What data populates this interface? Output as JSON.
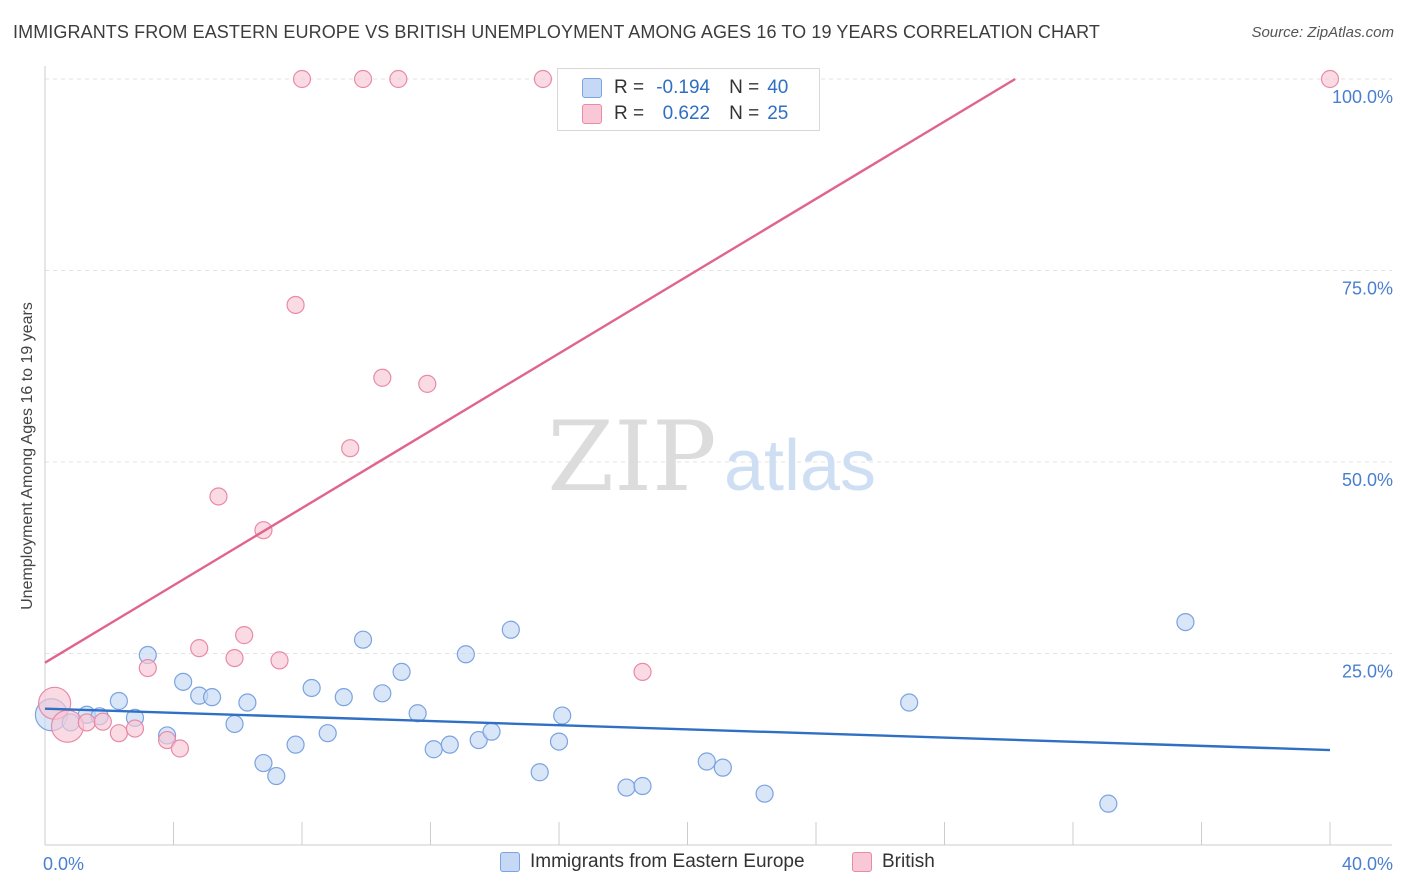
{
  "header": {
    "title": "IMMIGRANTS FROM EASTERN EUROPE VS BRITISH UNEMPLOYMENT AMONG AGES 16 TO 19 YEARS CORRELATION CHART",
    "source": "Source: ZipAtlas.com"
  },
  "watermark": {
    "zip": "ZIP",
    "atlas": "atlas"
  },
  "legend": {
    "r_label": "R =",
    "n_label": "N =",
    "rows": [
      {
        "series": "Immigrants from Eastern Europe",
        "r": "-0.194",
        "n": "40"
      },
      {
        "series": "British",
        "r": "0.622",
        "n": "25"
      }
    ]
  },
  "colors": {
    "blue_fill": "#c5d8f5",
    "blue_stroke": "#7ba3e0",
    "blue_line": "#2f6fc4",
    "pink_fill": "#f8c8d6",
    "pink_stroke": "#e88aa8",
    "pink_line": "#e0648f",
    "tick_label": "#4a7fd0",
    "grid": "#e3e3e3"
  },
  "chart_data": {
    "type": "scatter",
    "title": "IMMIGRANTS FROM EASTERN EUROPE VS BRITISH UNEMPLOYMENT AMONG AGES 16 TO 19 YEARS CORRELATION CHART",
    "xlabel": "",
    "ylabel": "Unemployment Among Ages 16 to 19 years",
    "xlim": [
      0,
      40
    ],
    "ylim": [
      0,
      100
    ],
    "x_tick_labels": [
      {
        "value": 0,
        "label": "0.0%"
      },
      {
        "value": 40,
        "label": "40.0%"
      }
    ],
    "y_tick_labels": [
      {
        "value": 25,
        "label": "25.0%"
      },
      {
        "value": 50,
        "label": "50.0%"
      },
      {
        "value": 75,
        "label": "75.0%"
      },
      {
        "value": 100,
        "label": "100.0%"
      }
    ],
    "series": [
      {
        "name": "Immigrants from Eastern Europe",
        "color": "#7ba3e0",
        "r": -0.194,
        "n": 40,
        "trend": {
          "x": [
            0,
            40
          ],
          "y": [
            17.8,
            12.4
          ]
        },
        "points": [
          {
            "x": 0.2,
            "y": 17.0,
            "big": true
          },
          {
            "x": 0.8,
            "y": 16.0
          },
          {
            "x": 1.3,
            "y": 17.0
          },
          {
            "x": 1.7,
            "y": 16.8
          },
          {
            "x": 2.3,
            "y": 18.8
          },
          {
            "x": 2.8,
            "y": 16.6
          },
          {
            "x": 3.2,
            "y": 24.8
          },
          {
            "x": 3.8,
            "y": 14.3
          },
          {
            "x": 4.3,
            "y": 21.3
          },
          {
            "x": 4.8,
            "y": 19.5
          },
          {
            "x": 5.2,
            "y": 19.3
          },
          {
            "x": 5.9,
            "y": 15.8
          },
          {
            "x": 6.3,
            "y": 18.6
          },
          {
            "x": 6.8,
            "y": 10.7
          },
          {
            "x": 7.2,
            "y": 9.0
          },
          {
            "x": 7.8,
            "y": 13.1
          },
          {
            "x": 8.3,
            "y": 20.5
          },
          {
            "x": 8.8,
            "y": 14.6
          },
          {
            "x": 9.3,
            "y": 19.3
          },
          {
            "x": 9.9,
            "y": 26.8
          },
          {
            "x": 10.5,
            "y": 19.8
          },
          {
            "x": 11.1,
            "y": 22.6
          },
          {
            "x": 11.6,
            "y": 17.2
          },
          {
            "x": 12.1,
            "y": 12.5
          },
          {
            "x": 12.6,
            "y": 13.1
          },
          {
            "x": 13.1,
            "y": 24.9
          },
          {
            "x": 13.5,
            "y": 13.7
          },
          {
            "x": 13.9,
            "y": 14.8
          },
          {
            "x": 14.5,
            "y": 28.1
          },
          {
            "x": 15.4,
            "y": 9.5
          },
          {
            "x": 16.0,
            "y": 13.5
          },
          {
            "x": 16.1,
            "y": 16.9
          },
          {
            "x": 18.1,
            "y": 7.5
          },
          {
            "x": 18.6,
            "y": 7.7
          },
          {
            "x": 20.6,
            "y": 10.9
          },
          {
            "x": 21.1,
            "y": 10.1
          },
          {
            "x": 22.4,
            "y": 6.7
          },
          {
            "x": 26.9,
            "y": 18.6
          },
          {
            "x": 33.1,
            "y": 5.4
          },
          {
            "x": 35.5,
            "y": 29.1
          }
        ]
      },
      {
        "name": "British",
        "color": "#e88aa8",
        "r": 0.622,
        "n": 25,
        "trend": {
          "x": [
            0,
            30.2
          ],
          "y": [
            23.8,
            100
          ]
        },
        "points": [
          {
            "x": 0.3,
            "y": 18.5,
            "big": true
          },
          {
            "x": 0.7,
            "y": 15.5,
            "big": true
          },
          {
            "x": 1.3,
            "y": 16.0
          },
          {
            "x": 1.8,
            "y": 16.1
          },
          {
            "x": 2.3,
            "y": 14.6
          },
          {
            "x": 2.8,
            "y": 15.2
          },
          {
            "x": 3.2,
            "y": 23.1
          },
          {
            "x": 3.8,
            "y": 13.7
          },
          {
            "x": 4.2,
            "y": 12.6
          },
          {
            "x": 4.8,
            "y": 25.7
          },
          {
            "x": 5.4,
            "y": 45.5
          },
          {
            "x": 5.9,
            "y": 24.4
          },
          {
            "x": 6.2,
            "y": 27.4
          },
          {
            "x": 6.8,
            "y": 41.1
          },
          {
            "x": 7.3,
            "y": 24.1
          },
          {
            "x": 7.8,
            "y": 70.5
          },
          {
            "x": 8.0,
            "y": 100
          },
          {
            "x": 9.5,
            "y": 51.8
          },
          {
            "x": 9.9,
            "y": 100
          },
          {
            "x": 10.5,
            "y": 61.0
          },
          {
            "x": 11.0,
            "y": 100
          },
          {
            "x": 11.9,
            "y": 60.2
          },
          {
            "x": 15.5,
            "y": 100
          },
          {
            "x": 18.6,
            "y": 22.6
          },
          {
            "x": 40.0,
            "y": 100
          }
        ]
      }
    ]
  }
}
